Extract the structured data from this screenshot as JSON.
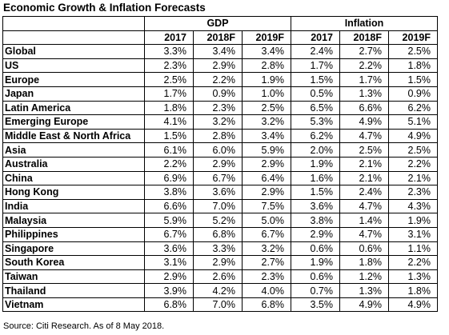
{
  "title": "Economic Growth & Inflation Forecasts",
  "chart_data": {
    "type": "table",
    "title": "Economic Growth & Inflation Forecasts",
    "groups": [
      "GDP",
      "Inflation"
    ],
    "years": [
      "2017",
      "2018F",
      "2019F"
    ],
    "rows": [
      {
        "region": "Global",
        "gdp": [
          "3.3%",
          "3.4%",
          "3.4%"
        ],
        "inflation": [
          "2.4%",
          "2.7%",
          "2.5%"
        ]
      },
      {
        "region": "US",
        "gdp": [
          "2.3%",
          "2.9%",
          "2.8%"
        ],
        "inflation": [
          "1.7%",
          "2.2%",
          "1.8%"
        ]
      },
      {
        "region": "Europe",
        "gdp": [
          "2.5%",
          "2.2%",
          "1.9%"
        ],
        "inflation": [
          "1.5%",
          "1.7%",
          "1.5%"
        ]
      },
      {
        "region": "Japan",
        "gdp": [
          "1.7%",
          "0.9%",
          "1.0%"
        ],
        "inflation": [
          "0.5%",
          "1.3%",
          "0.9%"
        ]
      },
      {
        "region": "Latin America",
        "gdp": [
          "1.8%",
          "2.3%",
          "2.5%"
        ],
        "inflation": [
          "6.5%",
          "6.6%",
          "6.2%"
        ]
      },
      {
        "region": "Emerging Europe",
        "gdp": [
          "4.1%",
          "3.2%",
          "3.2%"
        ],
        "inflation": [
          "5.3%",
          "4.9%",
          "5.1%"
        ]
      },
      {
        "region": "Middle East & North Africa",
        "gdp": [
          "1.5%",
          "2.8%",
          "3.4%"
        ],
        "inflation": [
          "6.2%",
          "4.7%",
          "4.9%"
        ]
      },
      {
        "region": "Asia",
        "gdp": [
          "6.1%",
          "6.0%",
          "5.9%"
        ],
        "inflation": [
          "2.0%",
          "2.5%",
          "2.5%"
        ]
      },
      {
        "region": "Australia",
        "gdp": [
          "2.2%",
          "2.9%",
          "2.9%"
        ],
        "inflation": [
          "1.9%",
          "2.1%",
          "2.2%"
        ]
      },
      {
        "region": "China",
        "gdp": [
          "6.9%",
          "6.7%",
          "6.4%"
        ],
        "inflation": [
          "1.6%",
          "2.1%",
          "2.1%"
        ]
      },
      {
        "region": "Hong Kong",
        "gdp": [
          "3.8%",
          "3.6%",
          "2.9%"
        ],
        "inflation": [
          "1.5%",
          "2.4%",
          "2.3%"
        ]
      },
      {
        "region": "India",
        "gdp": [
          "6.6%",
          "7.0%",
          "7.5%"
        ],
        "inflation": [
          "3.6%",
          "4.7%",
          "4.3%"
        ]
      },
      {
        "region": "Malaysia",
        "gdp": [
          "5.9%",
          "5.2%",
          "5.0%"
        ],
        "inflation": [
          "3.8%",
          "1.4%",
          "1.9%"
        ]
      },
      {
        "region": "Philippines",
        "gdp": [
          "6.7%",
          "6.8%",
          "6.7%"
        ],
        "inflation": [
          "2.9%",
          "4.7%",
          "3.1%"
        ]
      },
      {
        "region": "Singapore",
        "gdp": [
          "3.6%",
          "3.3%",
          "3.2%"
        ],
        "inflation": [
          "0.6%",
          "0.6%",
          "1.1%"
        ]
      },
      {
        "region": "South Korea",
        "gdp": [
          "3.1%",
          "2.9%",
          "2.7%"
        ],
        "inflation": [
          "1.9%",
          "1.8%",
          "2.2%"
        ]
      },
      {
        "region": "Taiwan",
        "gdp": [
          "2.9%",
          "2.6%",
          "2.3%"
        ],
        "inflation": [
          "0.6%",
          "1.2%",
          "1.3%"
        ]
      },
      {
        "region": "Thailand",
        "gdp": [
          "3.9%",
          "4.2%",
          "4.0%"
        ],
        "inflation": [
          "0.7%",
          "1.3%",
          "1.8%"
        ]
      },
      {
        "region": "Vietnam",
        "gdp": [
          "6.8%",
          "7.0%",
          "6.8%"
        ],
        "inflation": [
          "3.5%",
          "4.9%",
          "4.9%"
        ]
      }
    ]
  },
  "source": "Source: Citi Research. As of 8 May 2018."
}
